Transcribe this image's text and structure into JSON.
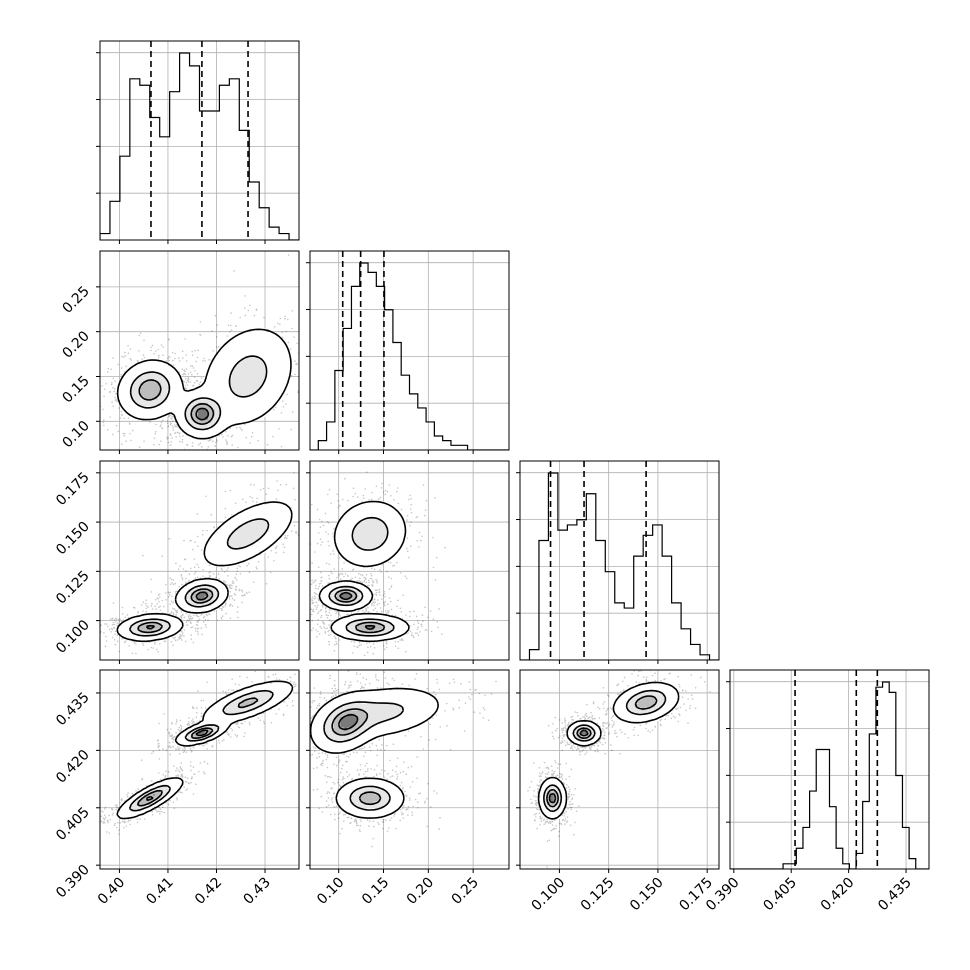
{
  "chart_data": {
    "type": "corner",
    "grid": true,
    "parameters": [
      {
        "index": 0,
        "range": [
          0.396,
          0.437
        ],
        "ticks": [
          0.4,
          0.41,
          0.42,
          0.43
        ],
        "tick_labels": [
          "0.40",
          "0.41",
          "0.42",
          "0.43"
        ],
        "quantiles": [
          0.4065,
          0.417,
          0.4265
        ],
        "histogram": [
          1,
          6,
          13,
          25,
          24,
          19,
          16,
          23,
          29,
          27,
          20,
          20,
          24,
          25,
          17,
          9,
          5,
          2,
          1,
          0
        ],
        "modes": [
          {
            "mu": 0.4063,
            "sd": 0.0028,
            "w": 0.33
          },
          {
            "mu": 0.417,
            "sd": 0.0022,
            "w": 0.34
          },
          {
            "mu": 0.4265,
            "sd": 0.0042,
            "w": 0.33
          }
        ]
      },
      {
        "index": 1,
        "range": [
          0.068,
          0.29
        ],
        "ticks": [
          0.1,
          0.15,
          0.2,
          0.25
        ],
        "tick_labels": [
          "0.10",
          "0.15",
          "0.20",
          "0.25"
        ],
        "quantiles": [
          0.1045,
          0.1245,
          0.1505
        ],
        "histogram": [
          0,
          2,
          6,
          17,
          26,
          35,
          40,
          38,
          35,
          30,
          23,
          16,
          12,
          9,
          6,
          3,
          2,
          1,
          1,
          0,
          0,
          0,
          0,
          0
        ],
        "modes": [
          {
            "mu": 0.135,
            "sd": 0.016
          },
          {
            "mu": 0.108,
            "sd": 0.012
          },
          {
            "mu": 0.15,
            "sd": 0.03
          }
        ]
      },
      {
        "index": 2,
        "range": [
          0.08,
          0.181
        ],
        "ticks": [
          0.1,
          0.125,
          0.15,
          0.175
        ],
        "tick_labels": [
          "0.100",
          "0.125",
          "0.150",
          "0.175"
        ],
        "quantiles": [
          0.0955,
          0.1125,
          0.144
        ],
        "histogram": [
          0,
          2,
          23,
          36,
          25,
          26,
          27,
          32,
          23,
          17,
          11,
          10,
          20,
          24,
          26,
          20,
          11,
          6,
          3,
          1,
          0
        ],
        "modes": [
          {
            "mu": 0.0965,
            "sd": 0.0028
          },
          {
            "mu": 0.1125,
            "sd": 0.003
          },
          {
            "mu": 0.144,
            "sd": 0.0065
          }
        ]
      },
      {
        "index": 3,
        "range": [
          0.389,
          0.441
        ],
        "ticks": [
          0.39,
          0.405,
          0.42,
          0.435
        ],
        "tick_labels": [
          "0.390",
          "0.405",
          "0.420",
          "0.435"
        ],
        "quantiles": [
          0.406,
          0.422,
          0.4275
        ],
        "histogram": [
          0,
          0,
          0,
          0,
          0,
          0,
          0,
          0,
          1,
          1,
          4,
          8,
          15,
          23,
          23,
          12,
          4,
          1,
          0,
          3,
          13,
          26,
          35,
          36,
          34,
          18,
          8,
          2,
          0,
          0
        ],
        "modes": [
          {
            "mu": 0.4075,
            "sd": 0.0018
          },
          {
            "mu": 0.4245,
            "sd": 0.0011
          },
          {
            "mu": 0.4325,
            "sd": 0.0025
          }
        ]
      }
    ],
    "y_axis_ticks_left_column": {
      "row1": [
        "0.10",
        "0.15",
        "0.20",
        "0.25"
      ],
      "row2": [
        "0.100",
        "0.125",
        "0.150",
        "0.175"
      ],
      "row3": [
        "0.390",
        "0.405",
        "0.420",
        "0.435"
      ]
    },
    "x_axis_labels_bottom_row": [
      [
        "0.40",
        "0.41",
        "0.42",
        "0.43"
      ],
      [
        "0.10",
        "0.15",
        "0.20",
        "0.25"
      ],
      [
        "0.100",
        "0.125",
        "0.150",
        "0.175"
      ],
      [
        "0.390",
        "0.405",
        "0.420",
        "0.435"
      ]
    ],
    "contour_levels_fraction_of_peak": [
      0.05,
      0.3,
      0.6,
      0.85
    ],
    "colors": {
      "ink": "#000000",
      "grid": "#b0b0b0",
      "background": "#ffffff"
    }
  }
}
